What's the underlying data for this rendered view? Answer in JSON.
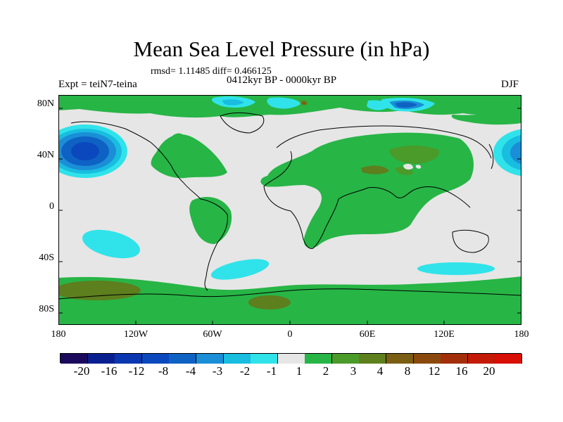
{
  "title": "Mean Sea Level Pressure (in hPa)",
  "stats": "rmsd= 1.11485 diff= 0.466125",
  "experiment": "Expt = teiN7-teina",
  "period": "0412kyr BP - 0000kyr BP",
  "season": "DJF",
  "axes": {
    "y_ticks": [
      "80N",
      "40N",
      "0",
      "40S",
      "80S"
    ],
    "x_ticks": [
      "180",
      "120W",
      "60W",
      "0",
      "60E",
      "120E",
      "180"
    ]
  },
  "colorbar": {
    "labels": [
      "-20",
      "-16",
      "-12",
      "-8",
      "-4",
      "-3",
      "-2",
      "-1",
      "1",
      "2",
      "3",
      "4",
      "8",
      "12",
      "16",
      "20"
    ],
    "colors": [
      "#1b0a5c",
      "#0a1f8f",
      "#0a36b0",
      "#0b48bd",
      "#0e62c4",
      "#1a8ed6",
      "#18bde0",
      "#30e3ea",
      "#e6e6e6",
      "#27b546",
      "#4a9b2a",
      "#5d7f1e",
      "#7a5e14",
      "#8a4a0e",
      "#a32e0a",
      "#c41a08",
      "#d80f05"
    ]
  },
  "colors": {
    "background": "#e6e6e6",
    "positive_1_2": "#27b546",
    "positive_2_3": "#4a9b2a",
    "positive_3_4": "#5d7f1e",
    "negative_1_2": "#30e3ea",
    "negative_2_3": "#18bde0",
    "negative_3_4": "#1a8ed6",
    "negative_4_8": "#0e62c4",
    "negative_8_12": "#0b48bd",
    "coast": "#000000"
  }
}
